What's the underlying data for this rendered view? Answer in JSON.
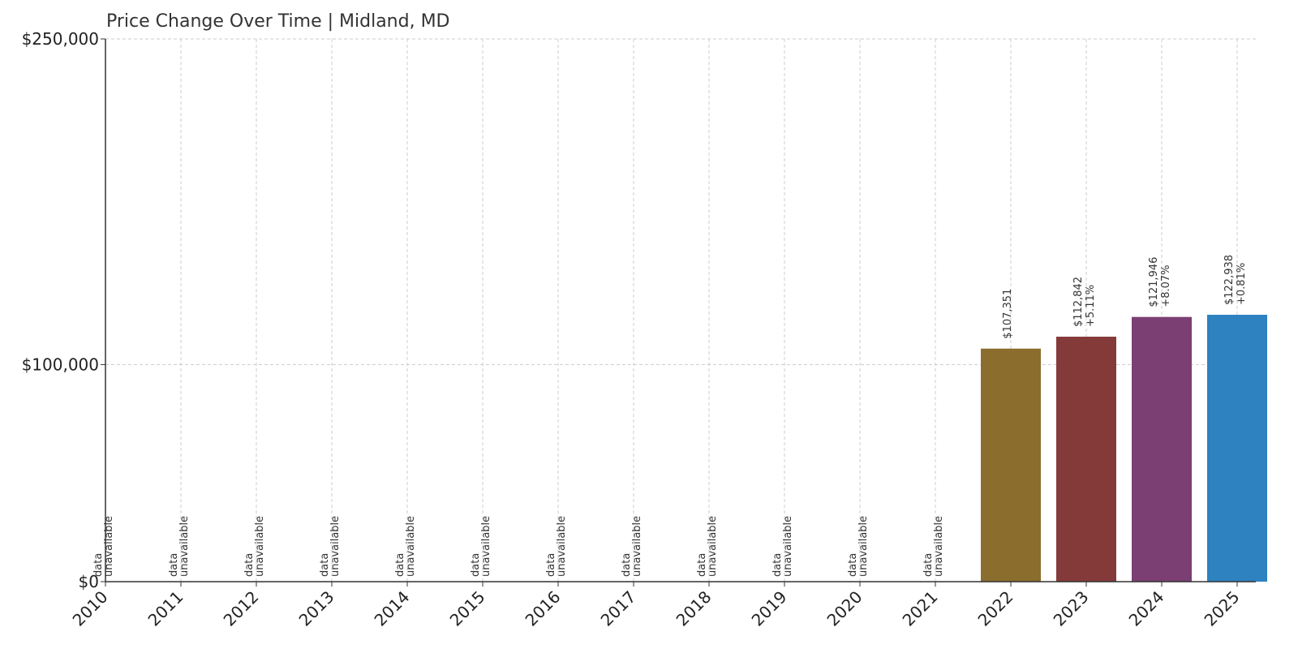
{
  "chart_data": {
    "type": "bar",
    "title": "Price Change Over Time | Midland, MD",
    "xlabel": "",
    "ylabel": "",
    "categories": [
      "2010",
      "2011",
      "2012",
      "2013",
      "2014",
      "2015",
      "2016",
      "2017",
      "2018",
      "2019",
      "2020",
      "2021",
      "2022",
      "2023",
      "2024",
      "2025"
    ],
    "values": [
      null,
      null,
      null,
      null,
      null,
      null,
      null,
      null,
      null,
      null,
      null,
      null,
      107351,
      112842,
      121946,
      122938
    ],
    "value_labels": [
      "",
      "",
      "",
      "",
      "",
      "",
      "",
      "",
      "",
      "",
      "",
      "",
      "$107,351",
      "$112,842",
      "$121,946",
      "$122,938"
    ],
    "change_labels": [
      "",
      "",
      "",
      "",
      "",
      "",
      "",
      "",
      "",
      "",
      "",
      "",
      "",
      "+5.11%",
      "+8.07%",
      "+0.81%"
    ],
    "unavailable_label": [
      "data",
      "unavailable"
    ],
    "colors": [
      "#8B6D2E",
      "#8B6D2E",
      "#8B6D2E",
      "#8B6D2E",
      "#8B6D2E",
      "#8B6D2E",
      "#8B6D2E",
      "#8B6D2E",
      "#8B6D2E",
      "#8B6D2E",
      "#8B6D2E",
      "#8B6D2E",
      "#8B6D2E",
      "#853A3A",
      "#7B3F73",
      "#2E82C0"
    ],
    "yticks": [
      0,
      100000,
      250000
    ],
    "ytick_labels": [
      "$0",
      "$100,000",
      "$250,000"
    ],
    "ylim": [
      0,
      250000
    ],
    "grid": true,
    "legend": "none"
  }
}
